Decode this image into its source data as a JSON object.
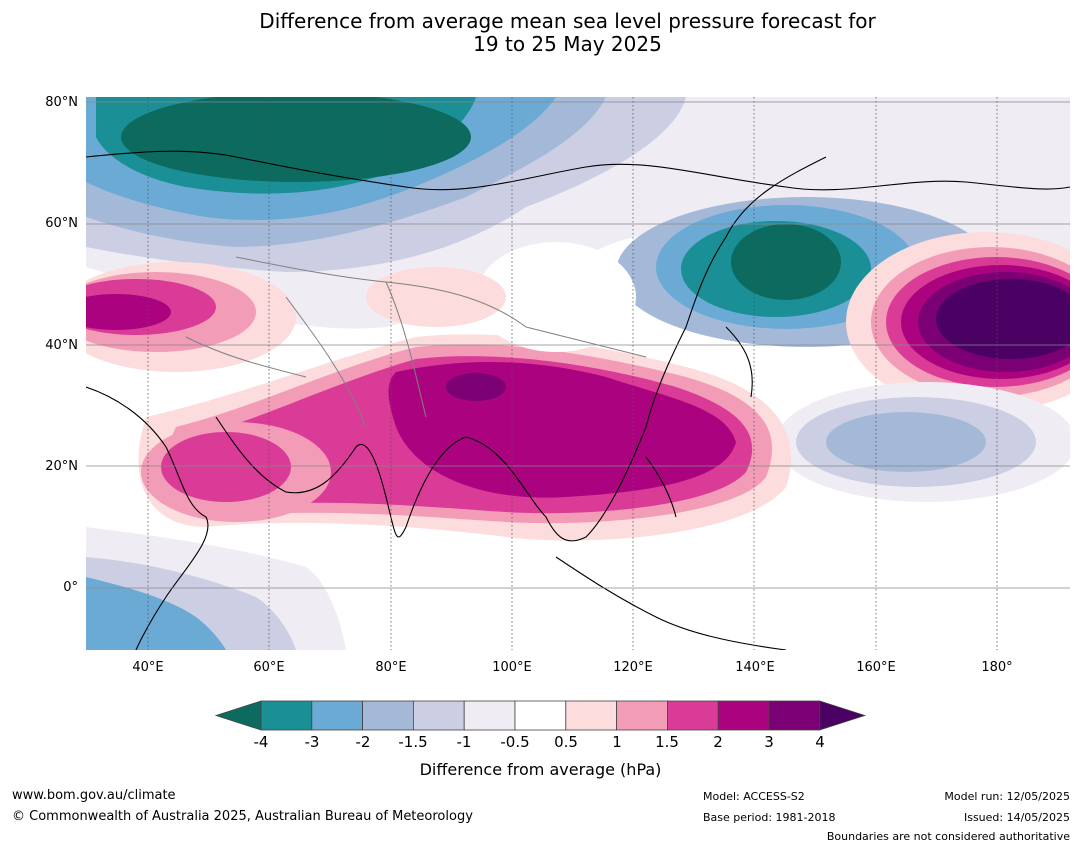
{
  "title": {
    "line1": "Difference from average mean sea level pressure forecast for",
    "line2": "19 to 25 May 2025"
  },
  "axes": {
    "lat_labels": [
      "80°N",
      "60°N",
      "40°N",
      "20°N",
      "0°"
    ],
    "lon_labels": [
      "40°E",
      "60°E",
      "80°E",
      "100°E",
      "120°E",
      "140°E",
      "160°E",
      "180°"
    ]
  },
  "colorbar": {
    "tick_labels": [
      "-4",
      "-3",
      "-2",
      "-1.5",
      "-1",
      "-0.5",
      "0.5",
      "1",
      "1.5",
      "2",
      "3",
      "4"
    ],
    "colors": [
      "#0c6b5e",
      "#1a8f96",
      "#6aaad4",
      "#a4b9d8",
      "#cccfe3",
      "#efecf3",
      "#ffffff",
      "#fcdcdc",
      "#f39cb7",
      "#d93b96",
      "#ab037f",
      "#7b0074",
      "#4b0063"
    ],
    "label": "Difference from average (hPa)"
  },
  "footer": {
    "website": "www.bom.gov.au/climate",
    "copyright": "© Commonwealth of Australia 2025, Australian Bureau of Meteorology",
    "model": "Model: ACCESS-S2",
    "base_period": "Base period: 1981-2018",
    "model_run": "Model run: 12/05/2025",
    "issued": "Issued: 14/05/2025",
    "boundaries_note": "Boundaries are not considered authoritative"
  }
}
